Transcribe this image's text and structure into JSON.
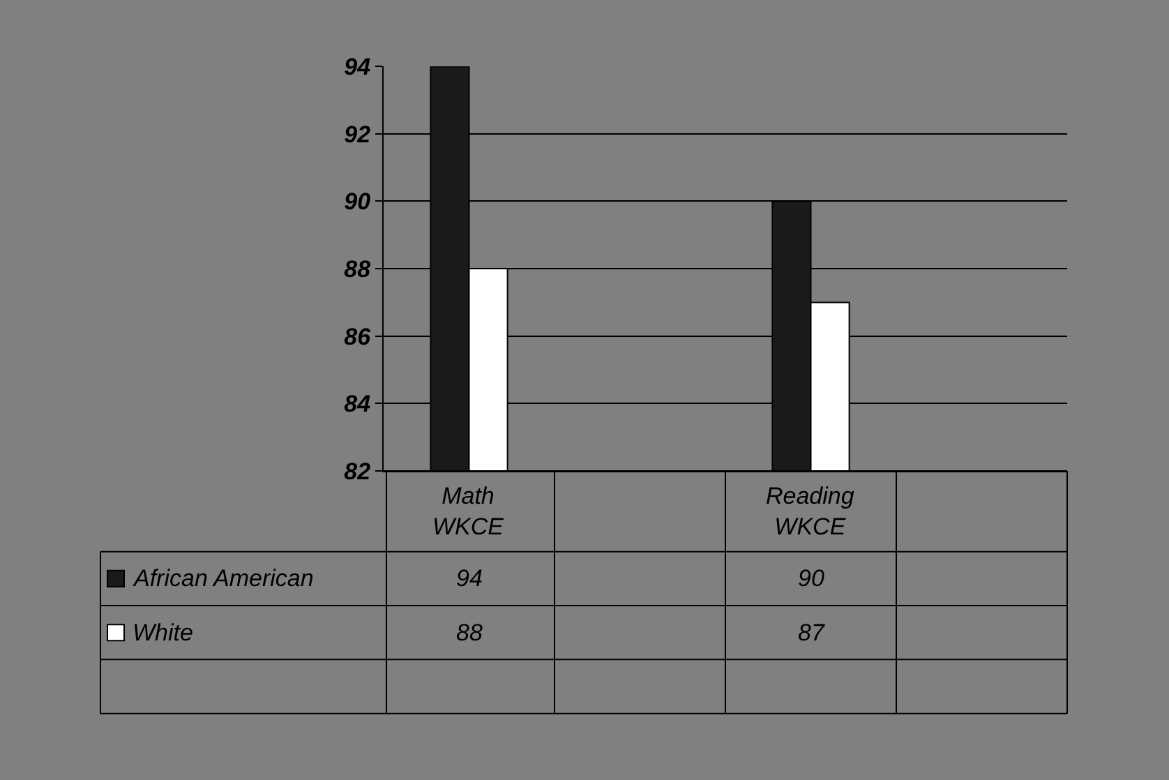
{
  "chart_data": {
    "type": "bar",
    "categories": [
      "Math WKCE",
      null,
      "Reading WKCE",
      null
    ],
    "series": [
      {
        "name": "African American",
        "color": "#1a1a1a",
        "values": [
          94,
          null,
          90,
          null
        ]
      },
      {
        "name": "White",
        "color": "#ffffff",
        "values": [
          88,
          null,
          87,
          null
        ]
      }
    ],
    "ylim": [
      82,
      94
    ],
    "yticks": [
      82,
      84,
      86,
      88,
      90,
      92,
      94
    ],
    "grid": "y",
    "data_labels": true,
    "legend": "bottom left"
  }
}
